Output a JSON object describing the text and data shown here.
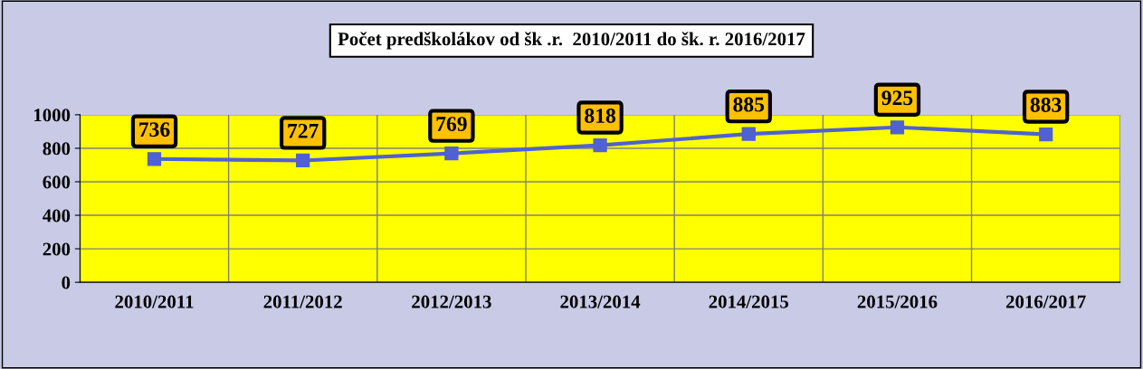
{
  "chart_data": {
    "type": "line",
    "title": "Počet predškolákov od šk .r.  2010/2011 do šk. r. 2016/2017",
    "categories": [
      "2010/2011",
      "2011/2012",
      "2012/2013",
      "2013/2014",
      "2014/2015",
      "2015/2016",
      "2016/2017"
    ],
    "values": [
      736,
      727,
      769,
      818,
      885,
      925,
      883
    ],
    "color": "#4f61d3",
    "marker": "square",
    "line_style": "solid",
    "ylim": [
      0,
      1000
    ],
    "yticks": [
      0,
      200,
      400,
      600,
      800,
      1000
    ],
    "grid": true,
    "data_labels": true
  }
}
